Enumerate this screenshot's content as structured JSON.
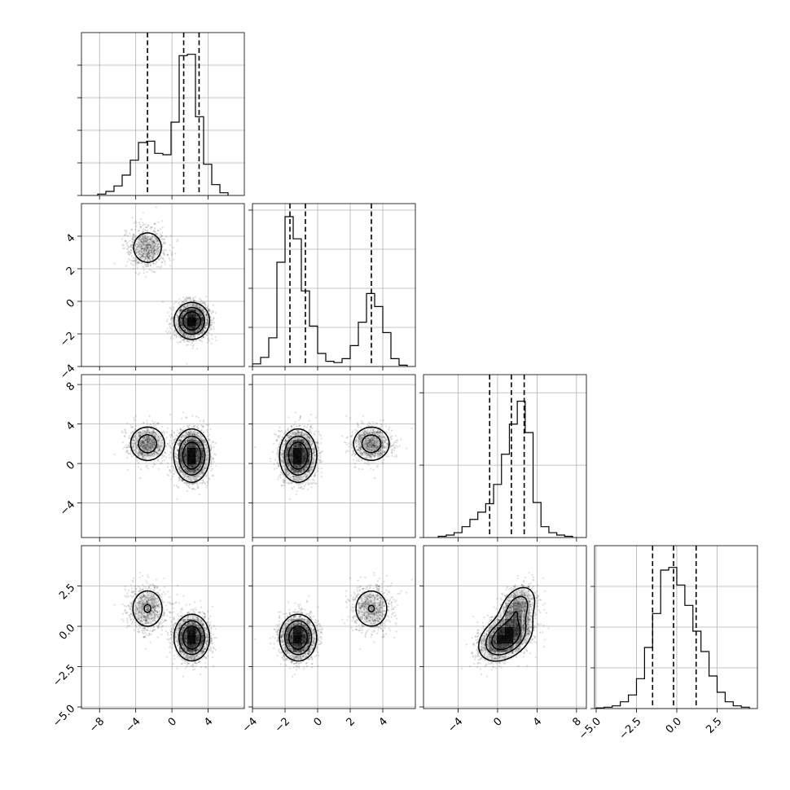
{
  "chart_data": {
    "type": "corner",
    "parameters": [
      {
        "range": [
          -10,
          8
        ],
        "ticks": [
          -8,
          -4,
          0,
          4
        ],
        "tick_labels": [
          "−8",
          "−4",
          "0",
          "4"
        ]
      },
      {
        "range": [
          -4,
          6
        ],
        "ticks": [
          -4,
          -2,
          0,
          2,
          4
        ],
        "tick_labels": [
          "−4",
          "−2",
          "0",
          "2",
          "4"
        ]
      },
      {
        "range": [
          -7.5,
          9
        ],
        "ticks": [
          -4,
          0,
          4,
          8
        ],
        "tick_labels": [
          "−4",
          "0",
          "4",
          "8"
        ]
      },
      {
        "range": [
          -5.1,
          5
        ],
        "ticks": [
          -5,
          -2.5,
          0,
          2.5
        ],
        "tick_labels": [
          "−5.0",
          "−2.5",
          "0.0",
          "2.5"
        ]
      }
    ],
    "quantiles": [
      [
        -2.7,
        1.3,
        3.0
      ],
      [
        -1.7,
        -0.75,
        3.3
      ],
      [
        -0.8,
        1.4,
        2.7
      ],
      [
        -1.5,
        -0.2,
        1.2
      ]
    ],
    "histograms": [
      {
        "bins": [
          -8.2,
          -7.3,
          -6.4,
          -5.5,
          -4.6,
          -3.7,
          -2.8,
          -1.9,
          -1.0,
          -0.1,
          0.8,
          1.7,
          2.6,
          3.5,
          4.4,
          5.3,
          6.2
        ],
        "counts": [
          0.5,
          1.5,
          3.5,
          7.5,
          13,
          19.5,
          20,
          15.5,
          15,
          27,
          51.5,
          52,
          29,
          11.5,
          4,
          1
        ]
      },
      {
        "bins": [
          -4.0,
          -3.5,
          -3.0,
          -2.5,
          -2.0,
          -1.5,
          -1.0,
          -0.5,
          0.0,
          0.5,
          1.0,
          1.5,
          2.0,
          2.5,
          3.0,
          3.5,
          4.0,
          4.5,
          5.0,
          5.5
        ],
        "counts": [
          2,
          7,
          22,
          80,
          115,
          98,
          58,
          31,
          10,
          4,
          3,
          6,
          16,
          34,
          56,
          46,
          26,
          6,
          1
        ]
      },
      {
        "bins": [
          -6.0,
          -5.2,
          -4.4,
          -3.6,
          -2.8,
          -2.0,
          -1.2,
          -0.4,
          0.4,
          1.2,
          2.0,
          2.8,
          3.6,
          4.4,
          5.2,
          6.0,
          6.8,
          7.6
        ],
        "counts": [
          1,
          2,
          4,
          9,
          15,
          21,
          28,
          44,
          69,
          94,
          113,
          87,
          29,
          9,
          4,
          2,
          1
        ]
      },
      {
        "bins": [
          -5.0,
          -4.5,
          -4.0,
          -3.5,
          -3.0,
          -2.5,
          -2.0,
          -1.5,
          -1.0,
          -0.5,
          0.0,
          0.5,
          1.0,
          1.5,
          2.0,
          2.5,
          3.0,
          3.5,
          4.0,
          4.5
        ],
        "counts": [
          0.5,
          1,
          2,
          5,
          10,
          22,
          45,
          70,
          102,
          104,
          91,
          76,
          57,
          42,
          24,
          12,
          5,
          2,
          1
        ]
      }
    ],
    "histogram_ylim": [
      [
        0,
        60
      ],
      [
        0,
        125
      ],
      [
        0,
        135
      ],
      [
        0,
        120
      ]
    ],
    "histogram_ticks": [
      [
        0,
        12,
        24,
        36,
        48
      ],
      [
        0,
        30,
        60,
        90,
        120
      ],
      [
        0,
        60,
        120
      ],
      [
        0,
        30,
        60,
        90
      ]
    ],
    "modes": [
      {
        "weight": 0.3,
        "mean": [
          -2.7,
          3.3,
          2.0,
          1.1
        ],
        "sd": [
          1.1,
          0.65,
          1.0,
          0.75
        ]
      },
      {
        "weight": 0.7,
        "mean": [
          2.2,
          -1.2,
          0.8,
          -0.7
        ],
        "sd": [
          0.95,
          0.55,
          1.3,
          0.7
        ]
      }
    ],
    "sample_count": 2400
  }
}
